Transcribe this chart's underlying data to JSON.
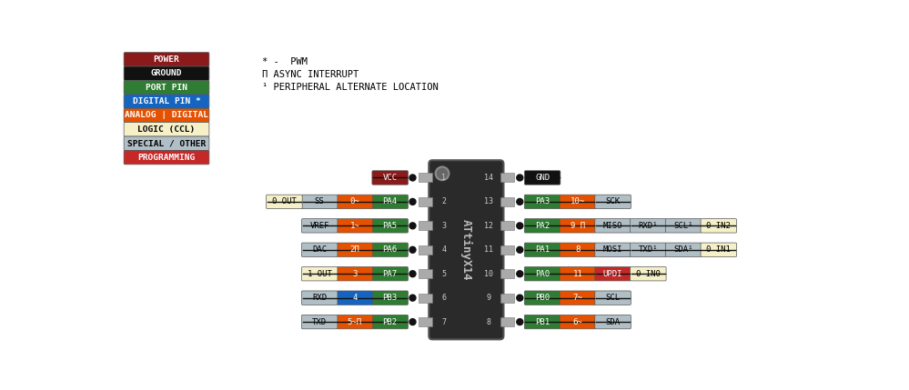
{
  "bg_color": "#ffffff",
  "chip_color": "#2a2a2a",
  "legend": [
    {
      "label": "POWER",
      "bg": "#8b1a1a",
      "fg": "#ffffff"
    },
    {
      "label": "GROUND",
      "bg": "#111111",
      "fg": "#ffffff"
    },
    {
      "label": "PORT PIN",
      "bg": "#2e7d32",
      "fg": "#ffffff"
    },
    {
      "label": "DIGITAL PIN *",
      "bg": "#1565c0",
      "fg": "#ffffff"
    },
    {
      "label": "ANALOG | DIGITAL",
      "bg": "#e65100",
      "fg": "#ffffff"
    },
    {
      "label": "LOGIC (CCL)",
      "bg": "#f5f0c8",
      "fg": "#000000"
    },
    {
      "label": "SPECIAL / OTHER",
      "bg": "#b0bec5",
      "fg": "#000000"
    },
    {
      "label": "PROGRAMMING",
      "bg": "#c62828",
      "fg": "#ffffff"
    }
  ],
  "notes": [
    "* -  PWM",
    "Π ASYNC INTERRUPT",
    "¹ PERIPHERAL ALTERNATE LOCATION"
  ],
  "colors": {
    "power": "#8b1a1a",
    "ground": "#111111",
    "port": "#2e7d32",
    "digital": "#1565c0",
    "analog": "#e65100",
    "logic": "#f5f0c8",
    "special": "#b0bec5",
    "prog": "#c62828"
  },
  "left_pins": [
    {
      "row": 0,
      "pin_num": "1",
      "items": [
        {
          "label": "VCC",
          "color": "power",
          "fg": "#ffffff"
        }
      ]
    },
    {
      "row": 1,
      "pin_num": "2",
      "items": [
        {
          "label": "0 OUT",
          "color": "logic",
          "fg": "#000000"
        },
        {
          "label": "SS",
          "color": "special",
          "fg": "#000000"
        },
        {
          "label": "0~",
          "color": "analog",
          "fg": "#ffffff"
        },
        {
          "label": "PA4",
          "color": "port",
          "fg": "#ffffff"
        }
      ]
    },
    {
      "row": 2,
      "pin_num": "3",
      "items": [
        {
          "label": "VREF",
          "color": "special",
          "fg": "#000000"
        },
        {
          "label": "1~",
          "color": "analog",
          "fg": "#ffffff"
        },
        {
          "label": "PA5",
          "color": "port",
          "fg": "#ffffff"
        }
      ]
    },
    {
      "row": 3,
      "pin_num": "4",
      "items": [
        {
          "label": "DAC",
          "color": "special",
          "fg": "#000000"
        },
        {
          "label": "2Π",
          "color": "analog",
          "fg": "#ffffff"
        },
        {
          "label": "PA6",
          "color": "port",
          "fg": "#ffffff"
        }
      ]
    },
    {
      "row": 4,
      "pin_num": "5",
      "items": [
        {
          "label": "1 OUT",
          "color": "logic",
          "fg": "#000000"
        },
        {
          "label": "3",
          "color": "analog",
          "fg": "#ffffff"
        },
        {
          "label": "PA7",
          "color": "port",
          "fg": "#ffffff"
        }
      ]
    },
    {
      "row": 5,
      "pin_num": "6",
      "items": [
        {
          "label": "RXD",
          "color": "special",
          "fg": "#000000"
        },
        {
          "label": "4",
          "color": "digital",
          "fg": "#ffffff"
        },
        {
          "label": "PB3",
          "color": "port",
          "fg": "#ffffff"
        }
      ]
    },
    {
      "row": 6,
      "pin_num": "7",
      "items": [
        {
          "label": "TXD",
          "color": "special",
          "fg": "#000000"
        },
        {
          "label": "5~Π",
          "color": "analog",
          "fg": "#ffffff"
        },
        {
          "label": "PB2",
          "color": "port",
          "fg": "#ffffff"
        }
      ]
    }
  ],
  "right_pins": [
    {
      "row": 0,
      "pin_num": "14",
      "items": [
        {
          "label": "GND",
          "color": "ground",
          "fg": "#ffffff"
        }
      ]
    },
    {
      "row": 1,
      "pin_num": "13",
      "items": [
        {
          "label": "PA3",
          "color": "port",
          "fg": "#ffffff"
        },
        {
          "label": "10~",
          "color": "analog",
          "fg": "#ffffff"
        },
        {
          "label": "SCK",
          "color": "special",
          "fg": "#000000"
        }
      ]
    },
    {
      "row": 2,
      "pin_num": "12",
      "items": [
        {
          "label": "PA2",
          "color": "port",
          "fg": "#ffffff"
        },
        {
          "label": "9 Π",
          "color": "analog",
          "fg": "#ffffff"
        },
        {
          "label": "MISO",
          "color": "special",
          "fg": "#000000"
        },
        {
          "label": "RXD¹",
          "color": "special",
          "fg": "#000000"
        },
        {
          "label": "SCL¹",
          "color": "special",
          "fg": "#000000"
        },
        {
          "label": "0 IN2",
          "color": "logic",
          "fg": "#000000"
        }
      ]
    },
    {
      "row": 3,
      "pin_num": "11",
      "items": [
        {
          "label": "PA1",
          "color": "port",
          "fg": "#ffffff"
        },
        {
          "label": "8",
          "color": "analog",
          "fg": "#ffffff"
        },
        {
          "label": "MOSI",
          "color": "special",
          "fg": "#000000"
        },
        {
          "label": "TXD¹",
          "color": "special",
          "fg": "#000000"
        },
        {
          "label": "SDA¹",
          "color": "special",
          "fg": "#000000"
        },
        {
          "label": "0 IN1",
          "color": "logic",
          "fg": "#000000"
        }
      ]
    },
    {
      "row": 4,
      "pin_num": "10",
      "items": [
        {
          "label": "PA0",
          "color": "port",
          "fg": "#ffffff"
        },
        {
          "label": "11",
          "color": "analog",
          "fg": "#ffffff"
        },
        {
          "label": "UPDI",
          "color": "prog",
          "fg": "#ffffff"
        },
        {
          "label": "0 IN0",
          "color": "logic",
          "fg": "#000000"
        }
      ]
    },
    {
      "row": 5,
      "pin_num": "9",
      "items": [
        {
          "label": "PB0",
          "color": "port",
          "fg": "#ffffff"
        },
        {
          "label": "7~",
          "color": "analog",
          "fg": "#ffffff"
        },
        {
          "label": "SCL",
          "color": "special",
          "fg": "#000000"
        }
      ]
    },
    {
      "row": 6,
      "pin_num": "8",
      "items": [
        {
          "label": "PB1",
          "color": "port",
          "fg": "#ffffff"
        },
        {
          "label": "6~",
          "color": "analog",
          "fg": "#ffffff"
        },
        {
          "label": "SDA",
          "color": "special",
          "fg": "#000000"
        }
      ]
    }
  ]
}
